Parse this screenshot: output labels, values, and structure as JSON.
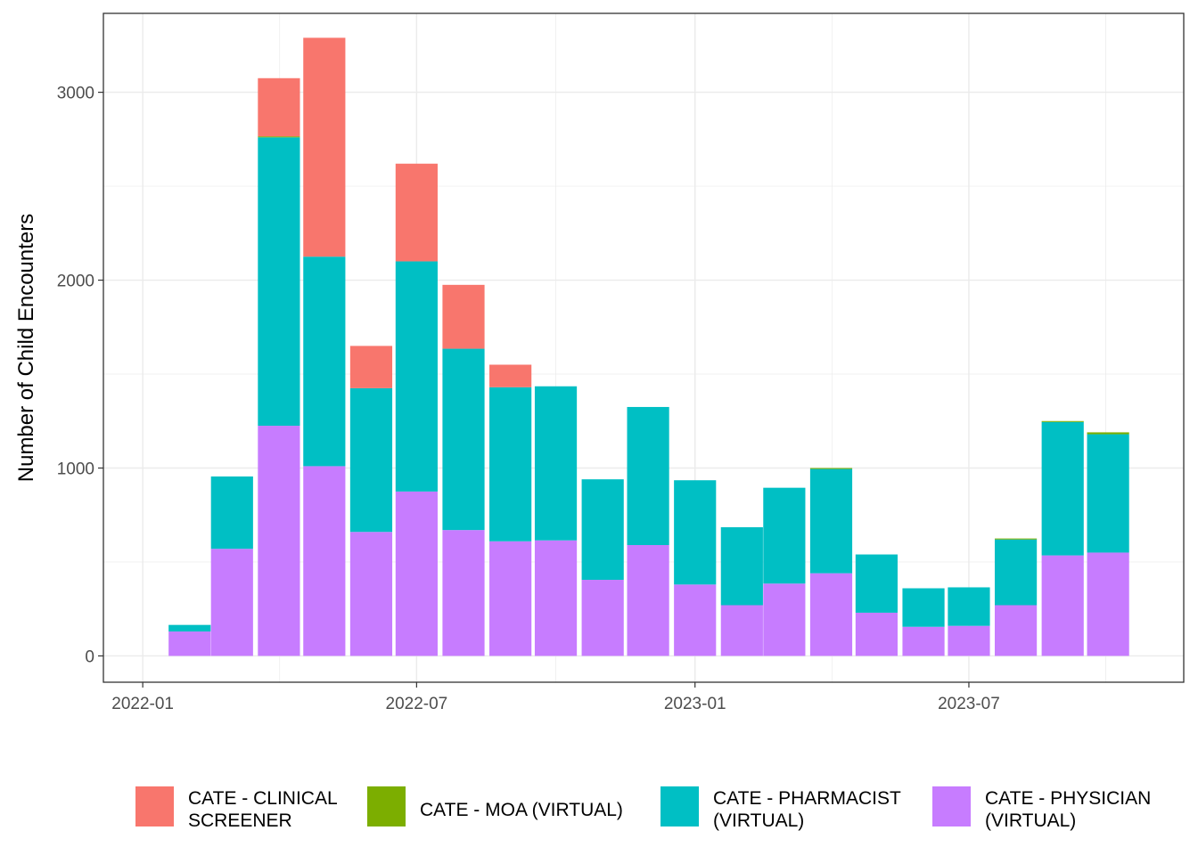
{
  "chart_data": {
    "type": "bar",
    "stacked": true,
    "xlabel": "",
    "ylabel": "Number of Child Encounters",
    "ylim": [
      -140,
      3420
    ],
    "yticks": [
      0,
      1000,
      2000,
      3000
    ],
    "xlim": [
      "2021-12-06",
      "2023-11-20"
    ],
    "xticks": [
      {
        "date": "2022-01-01",
        "label": "2022-01"
      },
      {
        "date": "2022-07-01",
        "label": "2022-07"
      },
      {
        "date": "2023-01-01",
        "label": "2023-01"
      },
      {
        "date": "2023-07-01",
        "label": "2023-07"
      }
    ],
    "grid": true,
    "legend_position": "bottom",
    "months": [
      "2022-02",
      "2022-03",
      "2022-04",
      "2022-05",
      "2022-06",
      "2022-07",
      "2022-08",
      "2022-09",
      "2022-10",
      "2022-11",
      "2022-12",
      "2023-01",
      "2023-02",
      "2023-03",
      "2023-04",
      "2023-05",
      "2023-06",
      "2023-07",
      "2023-08",
      "2023-09",
      "2023-10"
    ],
    "series": [
      {
        "name": "CATE - PHYSICIAN (VIRTUAL)",
        "color": "#C77CFF",
        "values": [
          130,
          570,
          1225,
          1010,
          660,
          875,
          670,
          610,
          615,
          405,
          590,
          380,
          270,
          385,
          440,
          230,
          155,
          160,
          270,
          535,
          550
        ]
      },
      {
        "name": "CATE - PHARMACIST (VIRTUAL)",
        "color": "#00BFC4",
        "values": [
          35,
          385,
          1535,
          1115,
          765,
          1225,
          965,
          820,
          820,
          535,
          735,
          555,
          415,
          510,
          555,
          310,
          205,
          205,
          350,
          710,
          630
        ]
      },
      {
        "name": "CATE - MOA (VIRTUAL)",
        "color": "#7CAE00",
        "values": [
          0,
          0,
          5,
          0,
          0,
          0,
          0,
          0,
          0,
          0,
          0,
          0,
          0,
          0,
          5,
          0,
          0,
          0,
          5,
          5,
          10
        ]
      },
      {
        "name": "CATE - CLINICAL SCREENER",
        "color": "#F8766D",
        "values": [
          0,
          0,
          310,
          1165,
          225,
          520,
          340,
          120,
          0,
          0,
          0,
          0,
          0,
          0,
          0,
          0,
          0,
          0,
          0,
          0,
          0
        ]
      }
    ],
    "legend": [
      {
        "series": "CATE - CLINICAL SCREENER",
        "lines": [
          "CATE - CLINICAL",
          "SCREENER"
        ],
        "color": "#F8766D"
      },
      {
        "series": "CATE - MOA (VIRTUAL)",
        "lines": [
          "CATE - MOA (VIRTUAL)"
        ],
        "color": "#7CAE00"
      },
      {
        "series": "CATE - PHARMACIST (VIRTUAL)",
        "lines": [
          "CATE - PHARMACIST",
          "(VIRTUAL)"
        ],
        "color": "#00BFC4"
      },
      {
        "series": "CATE - PHYSICIAN (VIRTUAL)",
        "lines": [
          "CATE - PHYSICIAN",
          "(VIRTUAL)"
        ],
        "color": "#C77CFF"
      }
    ]
  }
}
